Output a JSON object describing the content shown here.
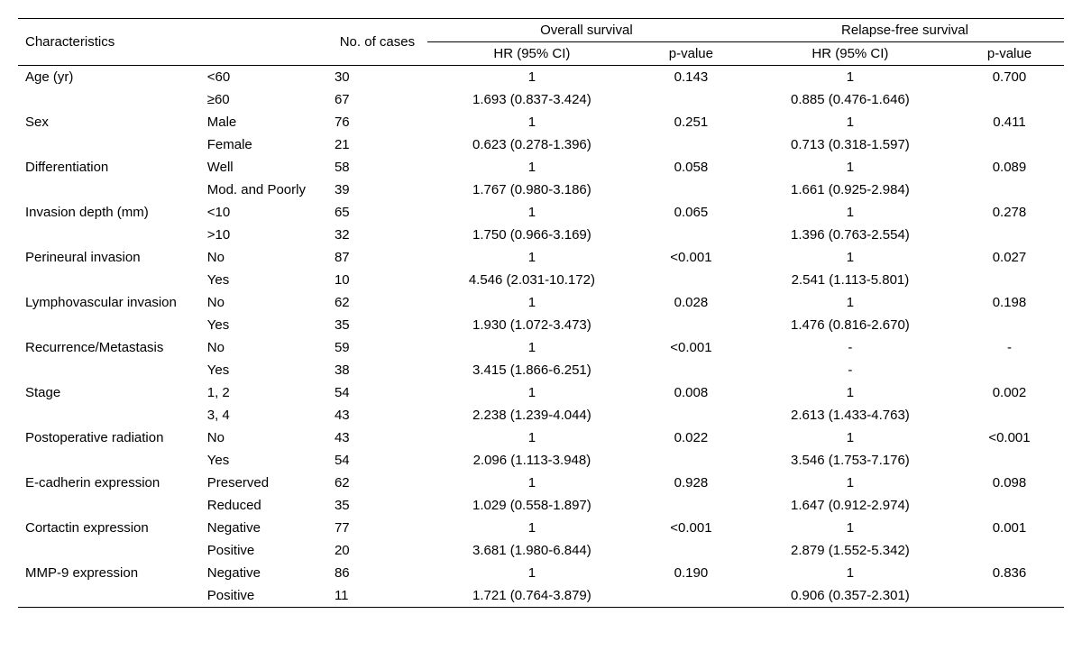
{
  "headers": {
    "characteristics": "Characteristics",
    "no_cases": "No. of cases",
    "overall_survival": "Overall survival",
    "relapse_free_survival": "Relapse-free survival",
    "hr": "HR (95% CI)",
    "pvalue": "p-value"
  },
  "rows": [
    {
      "char": "Age (yr)",
      "cat": "<60",
      "n": "30",
      "os_hr": "1",
      "os_p": "0.143",
      "rfs_hr": "1",
      "rfs_p": "0.700"
    },
    {
      "char": "",
      "cat": "≥60",
      "n": "67",
      "os_hr": "1.693 (0.837-3.424)",
      "os_p": "",
      "rfs_hr": "0.885 (0.476-1.646)",
      "rfs_p": ""
    },
    {
      "char": "Sex",
      "cat": "Male",
      "n": "76",
      "os_hr": "1",
      "os_p": "0.251",
      "rfs_hr": "1",
      "rfs_p": "0.411"
    },
    {
      "char": "",
      "cat": "Female",
      "n": "21",
      "os_hr": "0.623 (0.278-1.396)",
      "os_p": "",
      "rfs_hr": "0.713 (0.318-1.597)",
      "rfs_p": ""
    },
    {
      "char": "Differentiation",
      "cat": "Well",
      "n": "58",
      "os_hr": "1",
      "os_p": "0.058",
      "rfs_hr": "1",
      "rfs_p": "0.089"
    },
    {
      "char": "",
      "cat": "Mod. and Poorly",
      "n": "39",
      "os_hr": "1.767 (0.980-3.186)",
      "os_p": "",
      "rfs_hr": "1.661 (0.925-2.984)",
      "rfs_p": ""
    },
    {
      "char": "Invasion depth (mm)",
      "cat": "<10",
      "n": "65",
      "os_hr": "1",
      "os_p": "0.065",
      "rfs_hr": "1",
      "rfs_p": "0.278"
    },
    {
      "char": "",
      "cat": ">10",
      "n": "32",
      "os_hr": "1.750 (0.966-3.169)",
      "os_p": "",
      "rfs_hr": "1.396 (0.763-2.554)",
      "rfs_p": ""
    },
    {
      "char": "Perineural invasion",
      "cat": "No",
      "n": "87",
      "os_hr": "1",
      "os_p": "<0.001",
      "rfs_hr": "1",
      "rfs_p": "0.027"
    },
    {
      "char": "",
      "cat": "Yes",
      "n": "10",
      "os_hr": "4.546 (2.031-10.172)",
      "os_p": "",
      "rfs_hr": "2.541 (1.113-5.801)",
      "rfs_p": ""
    },
    {
      "char": "Lymphovascular invasion",
      "cat": "No",
      "n": "62",
      "os_hr": "1",
      "os_p": "0.028",
      "rfs_hr": "1",
      "rfs_p": "0.198"
    },
    {
      "char": "",
      "cat": "Yes",
      "n": "35",
      "os_hr": "1.930 (1.072-3.473)",
      "os_p": "",
      "rfs_hr": "1.476 (0.816-2.670)",
      "rfs_p": ""
    },
    {
      "char": "Recurrence/Metastasis",
      "cat": "No",
      "n": "59",
      "os_hr": "1",
      "os_p": "<0.001",
      "rfs_hr": "-",
      "rfs_p": "-"
    },
    {
      "char": "",
      "cat": "Yes",
      "n": "38",
      "os_hr": "3.415 (1.866-6.251)",
      "os_p": "",
      "rfs_hr": "-",
      "rfs_p": ""
    },
    {
      "char": "Stage",
      "cat": "1, 2",
      "n": "54",
      "os_hr": "1",
      "os_p": "0.008",
      "rfs_hr": "1",
      "rfs_p": "0.002"
    },
    {
      "char": "",
      "cat": "3, 4",
      "n": "43",
      "os_hr": "2.238 (1.239-4.044)",
      "os_p": "",
      "rfs_hr": "2.613 (1.433-4.763)",
      "rfs_p": ""
    },
    {
      "char": "Postoperative radiation",
      "cat": "No",
      "n": "43",
      "os_hr": "1",
      "os_p": "0.022",
      "rfs_hr": "1",
      "rfs_p": "<0.001"
    },
    {
      "char": "",
      "cat": "Yes",
      "n": "54",
      "os_hr": "2.096 (1.113-3.948)",
      "os_p": "",
      "rfs_hr": "3.546 (1.753-7.176)",
      "rfs_p": ""
    },
    {
      "char": "E-cadherin expression",
      "cat": "Preserved",
      "n": "62",
      "os_hr": "1",
      "os_p": "0.928",
      "rfs_hr": "1",
      "rfs_p": "0.098"
    },
    {
      "char": "",
      "cat": "Reduced",
      "n": "35",
      "os_hr": "1.029 (0.558-1.897)",
      "os_p": "",
      "rfs_hr": "1.647 (0.912-2.974)",
      "rfs_p": ""
    },
    {
      "char": "Cortactin expression",
      "cat": "Negative",
      "n": "77",
      "os_hr": "1",
      "os_p": "<0.001",
      "rfs_hr": "1",
      "rfs_p": "0.001"
    },
    {
      "char": "",
      "cat": "Positive",
      "n": "20",
      "os_hr": "3.681 (1.980-6.844)",
      "os_p": "",
      "rfs_hr": "2.879 (1.552-5.342)",
      "rfs_p": ""
    },
    {
      "char": "MMP-9 expression",
      "cat": "Negative",
      "n": "86",
      "os_hr": "1",
      "os_p": "0.190",
      "rfs_hr": "1",
      "rfs_p": "0.836"
    },
    {
      "char": "",
      "cat": "Positive",
      "n": "11",
      "os_hr": "1.721 (0.764-3.879)",
      "os_p": "",
      "rfs_hr": "0.906 (0.357-2.301)",
      "rfs_p": ""
    }
  ]
}
